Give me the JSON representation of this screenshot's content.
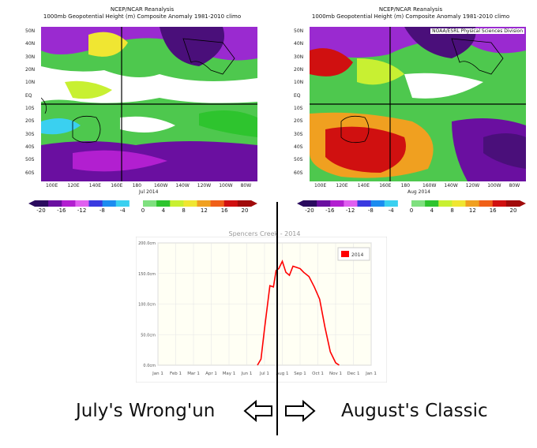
{
  "maps": [
    {
      "title_line1": "NCEP/NCAR Reanalysis",
      "title_line2": "1000mb Geopotential Height (m) Composite Anomaly 1981-2010 climo",
      "credit": "",
      "month_label": "Jul 2014",
      "lat_labels": [
        "50N",
        "40N",
        "30N",
        "20N",
        "10N",
        "EQ",
        "10S",
        "20S",
        "30S",
        "40S",
        "50S",
        "60S"
      ],
      "lon_labels": [
        "100E",
        "120E",
        "140E",
        "160E",
        "180",
        "160W",
        "140W",
        "120W",
        "100W",
        "80W"
      ]
    },
    {
      "title_line1": "NCEP/NCAR Reanalysis",
      "title_line2": "1000mb Geopotential Height (m) Composite Anomaly 1981-2010 climo",
      "credit": "NOAA/ESRL Physical Sciences Division",
      "month_label": "Aug 2014",
      "lat_labels": [
        "50N",
        "40N",
        "30N",
        "20N",
        "10N",
        "EQ",
        "10S",
        "20S",
        "30S",
        "40S",
        "50S",
        "60S"
      ],
      "lon_labels": [
        "100E",
        "120E",
        "140E",
        "160E",
        "180",
        "160W",
        "140W",
        "120W",
        "100W",
        "80W"
      ]
    }
  ],
  "colorbar": {
    "ticks": [
      "-20",
      "-16",
      "-12",
      "-8",
      "-4",
      "0",
      "4",
      "8",
      "12",
      "16",
      "20"
    ],
    "colors": [
      "#2a0a5e",
      "#6a0fa0",
      "#b21fd0",
      "#e05ff0",
      "#3a3ae0",
      "#1c8cf0",
      "#3ad0f0",
      "#ffffff",
      "#7fe07f",
      "#2ec42e",
      "#c8f032",
      "#f0e632",
      "#f0a020",
      "#f06018",
      "#d01010",
      "#a00a0a"
    ]
  },
  "chart_data": {
    "type": "line",
    "title": "Spencers Creek - 2014",
    "legend": [
      "2014"
    ],
    "legend_placement": "top-right",
    "series_color": "#ff0000",
    "categories": [
      "Jan 1",
      "Feb 1",
      "Mar 1",
      "Apr 1",
      "May 1",
      "Jun 1",
      "Jul 1",
      "Aug 1",
      "Sep 1",
      "Oct 1",
      "Nov 1",
      "Dec 1",
      "Jan 1"
    ],
    "y_ticks": [
      "0.0cm",
      "50.0cm",
      "100.0cm",
      "150.0cm",
      "200.0cm"
    ],
    "ylim": [
      0,
      200
    ],
    "xlim": [
      0,
      12
    ],
    "grid": true,
    "series": [
      {
        "name": "2014",
        "x": [
          5.6,
          5.8,
          6.0,
          6.3,
          6.5,
          6.65,
          6.8,
          7.0,
          7.2,
          7.4,
          7.6,
          7.8,
          8.0,
          8.2,
          8.5,
          8.8,
          9.1,
          9.4,
          9.7,
          10.0,
          10.2
        ],
        "values": [
          0,
          10,
          60,
          130,
          128,
          155,
          158,
          170,
          152,
          147,
          162,
          160,
          158,
          152,
          145,
          128,
          108,
          62,
          22,
          4,
          0
        ]
      }
    ]
  },
  "captions": {
    "left": "July's Wrong'un",
    "right": "August's Classic"
  }
}
